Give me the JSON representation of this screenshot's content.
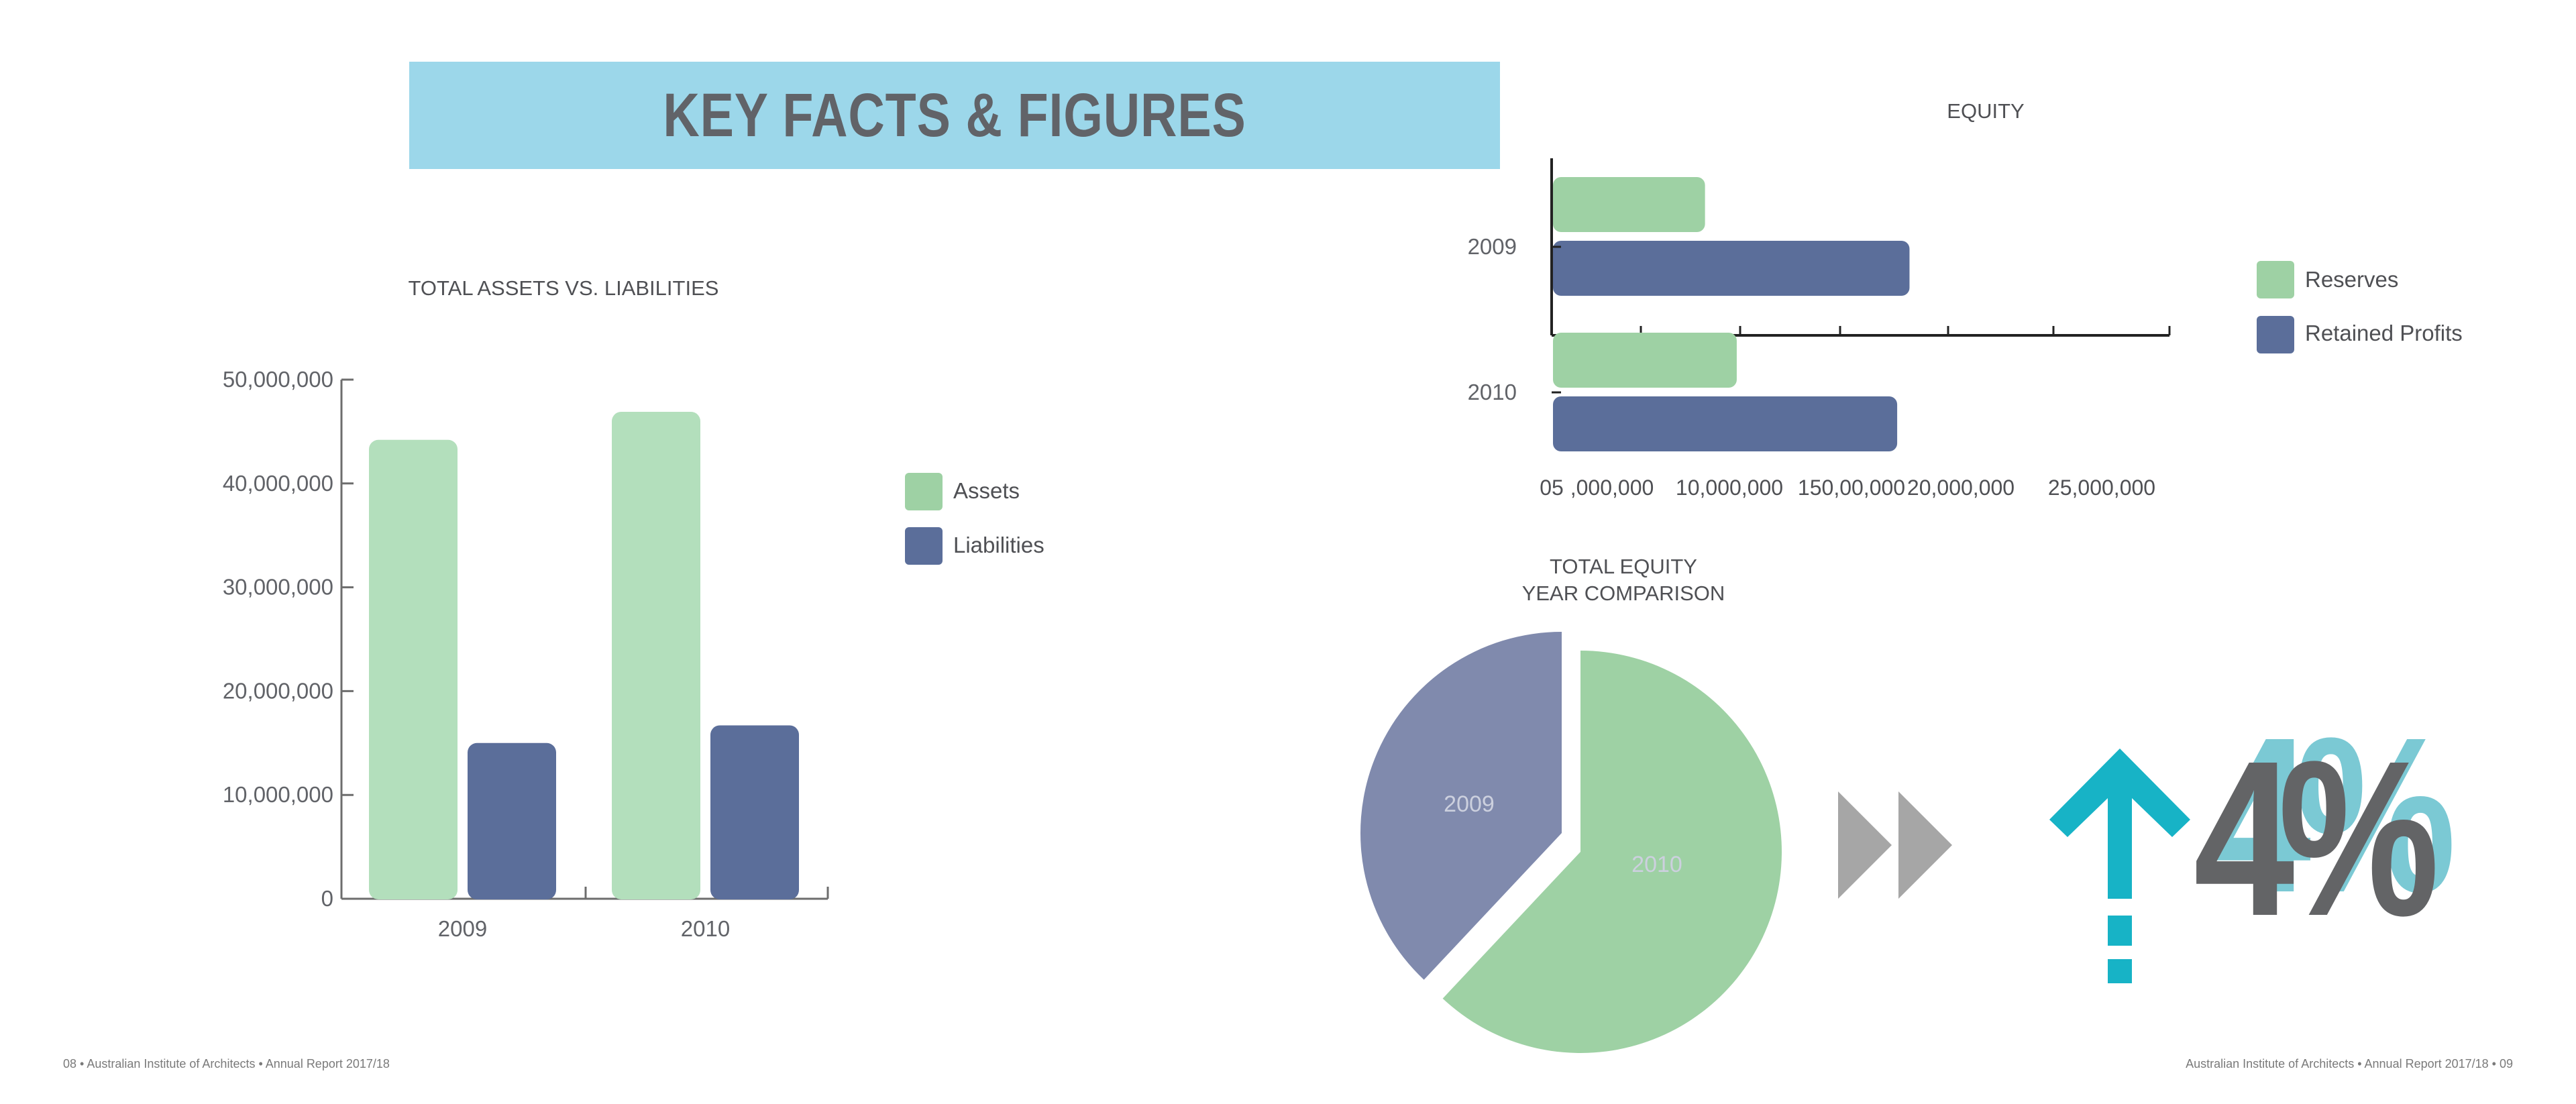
{
  "header": {
    "title": "KEY FACTS & FIGURES"
  },
  "colors": {
    "assets": "#b3dfbc",
    "liabilities": "#5b6e9a",
    "reserves": "#9ed1a4",
    "retained_profits": "#5b6e9a",
    "pie_2009": "#808aad",
    "pie_2010": "#9ed1a4",
    "banner": "#9cd7ea",
    "arrow": "#17b3c6",
    "chevrons": "#a6a6a6",
    "percent_dark": "#636466",
    "percent_light": "#7bc9d4"
  },
  "chart_data": [
    {
      "type": "bar",
      "title": "TOTAL ASSETS VS. LIABILITIES",
      "categories": [
        "2009",
        "2010"
      ],
      "series": [
        {
          "name": "Assets",
          "values": [
            44200000,
            46900000
          ]
        },
        {
          "name": "Liabilities",
          "values": [
            15000000,
            16700000
          ]
        }
      ],
      "yticks": [
        "0",
        "10,000,000",
        "20,000,000",
        "30,000,000",
        "40,000,000",
        "50,000,000"
      ],
      "ylim": [
        0,
        50000000
      ],
      "legend": "right"
    },
    {
      "type": "bar",
      "orientation": "horizontal",
      "title": "EQUITY",
      "categories": [
        "2009",
        "2010"
      ],
      "series": [
        {
          "name": "Reserves",
          "values": [
            8700000,
            10500000
          ]
        },
        {
          "name": "Retained Profits",
          "values": [
            20300000,
            19600000
          ]
        }
      ],
      "xticks": [
        "05",
        ",000,000",
        "10,000,000",
        "150,00,000",
        "20,000,000",
        "25,000,000"
      ],
      "xlim": [
        0,
        25000000
      ],
      "legend": "right"
    },
    {
      "type": "pie",
      "title_lines": [
        "TOTAL EQUITY",
        "YEAR COMPARISON"
      ],
      "labels": [
        "2009",
        "2010"
      ],
      "values": [
        38,
        62
      ]
    }
  ],
  "stat": {
    "value": "4%",
    "direction": "up"
  },
  "footer": {
    "left": "08 • Australian Institute of Architects • Annual Report 2017/18",
    "right": "Australian Institute of Architects • Annual Report 2017/18 • 09"
  }
}
